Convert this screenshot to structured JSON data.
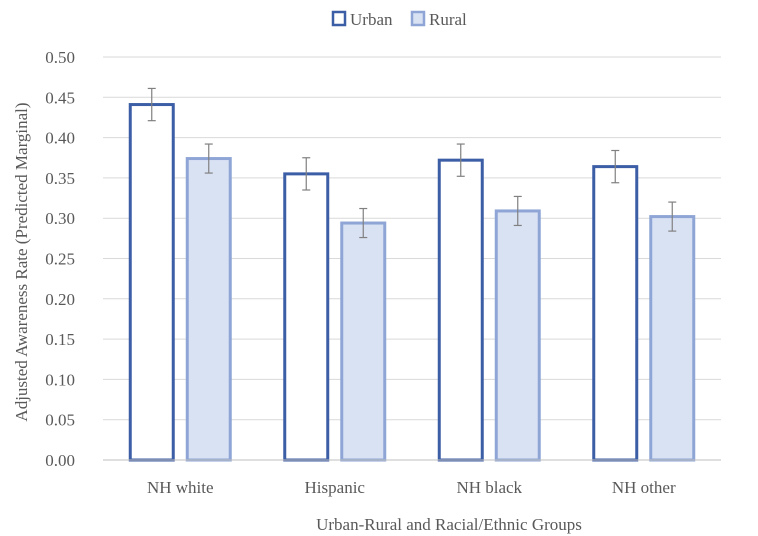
{
  "chart_data": {
    "type": "bar",
    "title": "",
    "xlabel": "Urban-Rural and Racial/Ethnic Groups",
    "ylabel": "Adjusted Awareness Rate (Predicted Marginal)",
    "categories": [
      "NH white",
      "Hispanic",
      "NH black",
      "NH other"
    ],
    "series": [
      {
        "name": "Urban",
        "values": [
          0.441,
          0.355,
          0.372,
          0.364
        ],
        "error_low": [
          0.421,
          0.335,
          0.352,
          0.344
        ],
        "error_high": [
          0.461,
          0.375,
          0.392,
          0.384
        ],
        "fill": "#ffffff",
        "stroke": "#3c5ea6"
      },
      {
        "name": "Rural",
        "values": [
          0.374,
          0.294,
          0.309,
          0.302
        ],
        "error_low": [
          0.356,
          0.276,
          0.291,
          0.284
        ],
        "error_high": [
          0.392,
          0.312,
          0.327,
          0.32
        ],
        "fill": "#d9e2f3",
        "stroke": "#8ea5d6"
      }
    ],
    "ylim": [
      0,
      0.5
    ],
    "yticks": [
      "0.00",
      "0.05",
      "0.10",
      "0.15",
      "0.20",
      "0.25",
      "0.30",
      "0.35",
      "0.40",
      "0.45",
      "0.50"
    ],
    "grid": true,
    "legend_position": "top-center",
    "colors": {
      "gridline": "#d9d9d9",
      "axis": "#bfbfbf",
      "errorbar": "#808080",
      "text": "#595959"
    }
  }
}
